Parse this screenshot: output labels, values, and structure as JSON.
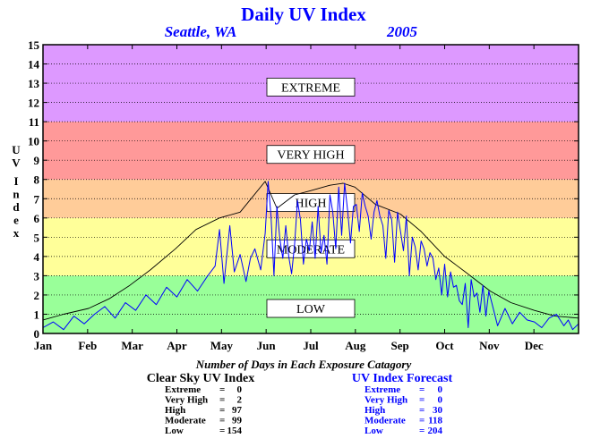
{
  "chart_data": {
    "type": "line",
    "title": "Daily UV Index",
    "location": "Seattle, WA",
    "year": "2005",
    "ylabel": "UV Index",
    "ylim": [
      0,
      15
    ],
    "xlim": [
      1,
      365
    ],
    "yticks": [
      "0",
      "1",
      "2",
      "3",
      "4",
      "5",
      "6",
      "7",
      "8",
      "9",
      "10",
      "11",
      "12",
      "13",
      "14",
      "15"
    ],
    "months": [
      "Jan",
      "Feb",
      "Mar",
      "Apr",
      "May",
      "Jun",
      "Jul",
      "Aug",
      "Sep",
      "Oct",
      "Nov",
      "Dec"
    ],
    "bands": [
      {
        "name": "LOW",
        "from": 0,
        "to": 3,
        "color": "#99ff99",
        "label_y": 1.3
      },
      {
        "name": "MODERATE",
        "from": 3,
        "to": 6,
        "color": "#ffff99",
        "label_y": 4.4
      },
      {
        "name": "HIGH",
        "from": 6,
        "to": 8,
        "color": "#ffcc99",
        "label_y": 6.8
      },
      {
        "name": "VERY HIGH",
        "from": 8,
        "to": 11,
        "color": "#ff9999",
        "label_y": 9.3
      },
      {
        "name": "EXTREME",
        "from": 11,
        "to": 15,
        "color": "#dd99ff",
        "label_y": 12.8
      }
    ],
    "series": [
      {
        "name": "Clear Sky UV Index",
        "color": "#000000",
        "x": [
          1,
          15,
          32,
          46,
          60,
          74,
          91,
          105,
          121,
          135,
          152,
          160,
          172,
          182,
          196,
          205,
          213,
          227,
          244,
          258,
          274,
          288,
          305,
          319,
          335,
          349,
          365
        ],
        "y": [
          0.7,
          1.0,
          1.3,
          1.8,
          2.5,
          3.3,
          4.4,
          5.4,
          6.0,
          6.3,
          7.9,
          6.5,
          7.2,
          7.4,
          7.7,
          7.8,
          7.6,
          6.7,
          6.2,
          5.3,
          4.0,
          3.2,
          2.2,
          1.6,
          1.2,
          0.9,
          0.8
        ]
      },
      {
        "name": "UV Index Forecast",
        "color": "#0000ff",
        "x": [
          1,
          8,
          15,
          22,
          29,
          36,
          43,
          50,
          57,
          64,
          71,
          78,
          85,
          92,
          99,
          106,
          113,
          118,
          121,
          124,
          128,
          131,
          135,
          139,
          142,
          145,
          149,
          152,
          154,
          156,
          158,
          160,
          162,
          164,
          166,
          168,
          170,
          172,
          174,
          176,
          178,
          180,
          182,
          184,
          186,
          188,
          190,
          192,
          194,
          196,
          198,
          200,
          202,
          204,
          206,
          208,
          210,
          212,
          214,
          216,
          218,
          220,
          222,
          224,
          226,
          228,
          230,
          232,
          234,
          236,
          238,
          240,
          242,
          244,
          246,
          248,
          250,
          252,
          254,
          256,
          258,
          260,
          262,
          264,
          266,
          268,
          270,
          272,
          274,
          276,
          278,
          280,
          282,
          284,
          286,
          288,
          290,
          292,
          294,
          296,
          298,
          300,
          302,
          304,
          306,
          310,
          315,
          320,
          325,
          330,
          335,
          340,
          345,
          350,
          355,
          358,
          361,
          365
        ],
        "y": [
          0.3,
          0.6,
          0.2,
          0.9,
          0.5,
          1.0,
          1.4,
          0.8,
          1.6,
          1.2,
          2.0,
          1.5,
          2.4,
          1.9,
          2.8,
          2.2,
          3.0,
          3.5,
          5.4,
          2.6,
          5.6,
          3.2,
          4.1,
          2.7,
          3.9,
          4.4,
          3.3,
          5.2,
          7.9,
          6.1,
          3.0,
          6.6,
          4.9,
          3.9,
          5.6,
          4.0,
          3.1,
          4.6,
          6.9,
          5.9,
          3.6,
          4.9,
          4.3,
          5.8,
          3.9,
          6.6,
          4.2,
          5.1,
          3.6,
          7.2,
          6.3,
          4.4,
          7.6,
          5.1,
          7.8,
          6.4,
          4.7,
          6.6,
          6.7,
          5.3,
          7.3,
          6.6,
          6.1,
          4.9,
          6.3,
          6.9,
          6.1,
          5.6,
          3.9,
          6.4,
          5.9,
          3.7,
          6.3,
          5.3,
          4.3,
          6.1,
          3.0,
          5.0,
          4.5,
          3.3,
          4.8,
          4.4,
          3.5,
          4.2,
          3.9,
          2.8,
          3.4,
          2.0,
          3.6,
          1.9,
          3.2,
          2.4,
          2.5,
          1.7,
          1.5,
          2.6,
          0.3,
          2.8,
          1.9,
          2.1,
          1.1,
          2.5,
          0.9,
          2.2,
          1.6,
          0.4,
          1.3,
          0.5,
          1.1,
          0.7,
          0.6,
          0.3,
          0.8,
          1.0,
          0.4,
          0.7,
          0.2,
          0.5
        ]
      }
    ]
  },
  "footer": {
    "title": "Number of Days in Each Exposure Catagory",
    "left_heading": "Clear Sky UV Index",
    "right_heading": "UV Index Forecast",
    "left_rows": [
      {
        "label": "Extreme",
        "eq": "=",
        "value": "0"
      },
      {
        "label": "Very High",
        "eq": "=",
        "value": "2"
      },
      {
        "label": "High",
        "eq": "=",
        "value": "97"
      },
      {
        "label": "Moderate",
        "eq": "=",
        "value": "99"
      },
      {
        "label": "Low",
        "eq": "=",
        "value": "154"
      }
    ],
    "right_rows": [
      {
        "label": "Extreme",
        "eq": "=",
        "value": "0"
      },
      {
        "label": "Very High",
        "eq": "=",
        "value": "0"
      },
      {
        "label": "High",
        "eq": "=",
        "value": "30"
      },
      {
        "label": "Moderate",
        "eq": "=",
        "value": "118"
      },
      {
        "label": "Low",
        "eq": "=",
        "value": "204"
      }
    ]
  }
}
